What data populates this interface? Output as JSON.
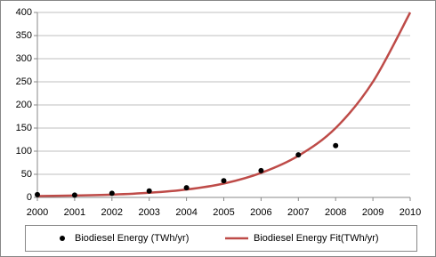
{
  "chart_data": {
    "type": "scatter",
    "xlim": [
      2000,
      2010
    ],
    "xticks": [
      2000,
      2001,
      2002,
      2003,
      2004,
      2005,
      2006,
      2007,
      2008,
      2009,
      2010
    ],
    "ylim": [
      0,
      400
    ],
    "yticks": [
      0,
      50,
      100,
      150,
      200,
      250,
      300,
      350,
      400
    ],
    "grid": true,
    "legend": "bottom",
    "series": [
      {
        "name": "Biodiesel Energy (TWh/yr)",
        "type": "scatter",
        "color": "#000000",
        "x": [
          2000,
          2001,
          2002,
          2003,
          2004,
          2005,
          2006,
          2007,
          2008
        ],
        "values": [
          6,
          5,
          9,
          14,
          21,
          36,
          58,
          92,
          112
        ]
      },
      {
        "name": "Biodiesel Energy Fit(TWh/yr)",
        "type": "line",
        "color": "#be4b48",
        "x": [
          2000,
          2001,
          2002,
          2003,
          2004,
          2005,
          2006,
          2007,
          2008,
          2009,
          2010
        ],
        "values": [
          3,
          4,
          6,
          10,
          17,
          30,
          53,
          90,
          150,
          250,
          400
        ]
      }
    ]
  }
}
